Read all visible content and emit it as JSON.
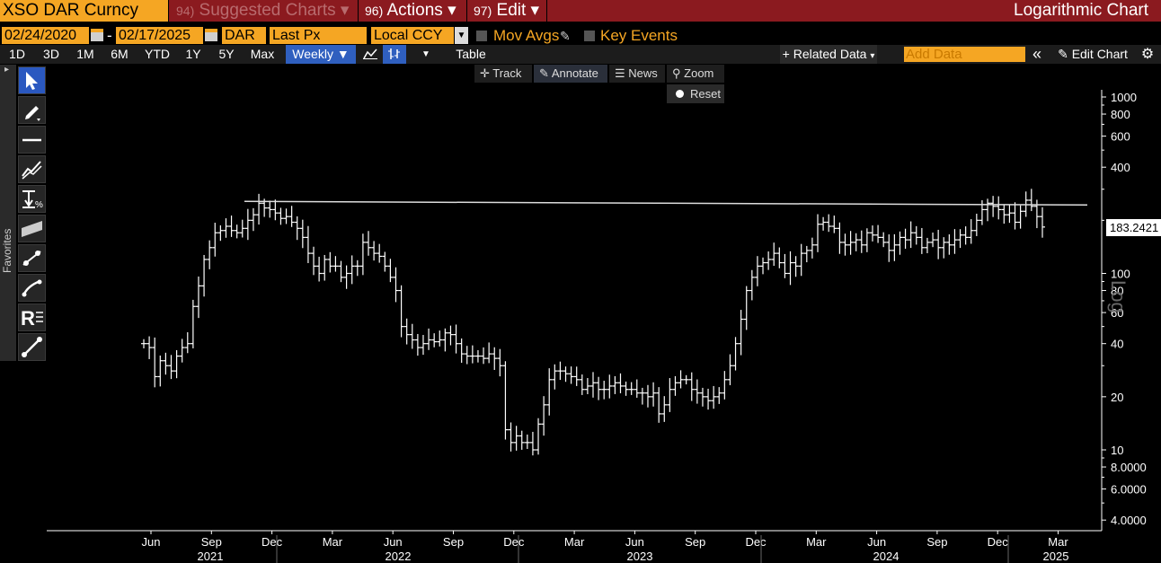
{
  "command_bar": {
    "security": "XSO DAR Curncy",
    "suggested": {
      "num": "94)",
      "label": "Suggested Charts",
      "arrow": "▾"
    },
    "actions": {
      "num": "96)",
      "label": "Actions",
      "arrow": "▾"
    },
    "edit": {
      "num": "97)",
      "label": "Edit",
      "arrow": "▾"
    },
    "title": "Logarithmic Chart"
  },
  "settings": {
    "start_date": "02/24/2020",
    "date_sep": "-",
    "end_date": "02/17/2025",
    "ticker_field": "DAR",
    "price_field": "Last Px",
    "currency": "Local CCY",
    "mov_avgs": "Mov Avgs",
    "key_events": "Key Events"
  },
  "toolbar": {
    "periods": [
      "1D",
      "3D",
      "1M",
      "6M",
      "YTD",
      "1Y",
      "5Y",
      "Max"
    ],
    "frequency": "Weekly ▼",
    "table": "Table",
    "related_data": "+ Related Data",
    "related_arrow": "▾",
    "add_data_placeholder": "Add Data",
    "collapse": "«",
    "edit_chart": "Edit Chart"
  },
  "annotation_bar": {
    "track": "Track",
    "annotate": "Annotate",
    "news": "News",
    "zoom": "Zoom",
    "reset": "Reset"
  },
  "palette": {
    "favorites": "Favorites",
    "tools": [
      "pointer-tool",
      "pen-tool",
      "horizontal-line-tool",
      "trend-line-tool",
      "percent-tool",
      "channel-tool",
      "fibonacci-tool",
      "arc-tool",
      "text-tool",
      "segment-tool"
    ]
  },
  "colors": {
    "accent_orange": "#f5a623",
    "title_bar_red": "#8b1a1f",
    "active_blue": "#2f5fbf"
  },
  "chart_data": {
    "type": "ohlc",
    "frequency": "weekly",
    "scale": "log",
    "title": "Logarithmic Chart",
    "last_price_label": "183.2421",
    "axis_label": "Log",
    "y_ticks": [
      {
        "value": 1000,
        "label": "1000"
      },
      {
        "value": 800,
        "label": "800"
      },
      {
        "value": 600,
        "label": "600"
      },
      {
        "value": 400,
        "label": "400"
      },
      {
        "value": 100,
        "label": "100"
      },
      {
        "value": 80,
        "label": "80"
      },
      {
        "value": 60,
        "label": "60"
      },
      {
        "value": 40,
        "label": "40"
      },
      {
        "value": 20,
        "label": "20"
      },
      {
        "value": 10,
        "label": "10"
      },
      {
        "value": 8,
        "label": "8.0000"
      },
      {
        "value": 6,
        "label": "6.0000"
      },
      {
        "value": 4,
        "label": "4.0000"
      }
    ],
    "x_months": [
      "Jun",
      "Sep",
      "Dec",
      "Mar",
      "Jun",
      "Sep",
      "Dec",
      "Mar",
      "Jun",
      "Sep",
      "Dec",
      "Mar",
      "Jun",
      "Sep",
      "Dec",
      "Mar"
    ],
    "x_years": [
      "2021",
      "2022",
      "2023",
      "2024",
      "2025"
    ],
    "resistance_level": 250,
    "prices": [
      40,
      38,
      26,
      32,
      30,
      28,
      34,
      38,
      40,
      65,
      85,
      120,
      140,
      170,
      175,
      185,
      175,
      170,
      180,
      200,
      215,
      250,
      235,
      230,
      220,
      205,
      210,
      195,
      180,
      160,
      130,
      110,
      100,
      120,
      110,
      110,
      95,
      100,
      110,
      110,
      150,
      140,
      130,
      125,
      110,
      95,
      80,
      50,
      45,
      42,
      38,
      40,
      42,
      41,
      42,
      46,
      45,
      40,
      35,
      34,
      34,
      34,
      33,
      35,
      33,
      30,
      13,
      11,
      12,
      11,
      11,
      10,
      14,
      18,
      25,
      28,
      28,
      27,
      26,
      25,
      22,
      23,
      24,
      22,
      22,
      23,
      24,
      23,
      22,
      22,
      21,
      21,
      20,
      21,
      16,
      18,
      22,
      24,
      25,
      25,
      22,
      21,
      20,
      19,
      20,
      21,
      25,
      30,
      40,
      55,
      80,
      95,
      110,
      115,
      120,
      130,
      115,
      100,
      115,
      110,
      130,
      135,
      145,
      190,
      195,
      185,
      180,
      150,
      145,
      150,
      155,
      145,
      170,
      165,
      160,
      150,
      135,
      145,
      160,
      155,
      170,
      160,
      140,
      150,
      155,
      140,
      150,
      145,
      155,
      165,
      160,
      175,
      200,
      230,
      250,
      240,
      230,
      215,
      220,
      195,
      225,
      260,
      240,
      210,
      183.2421
    ]
  }
}
